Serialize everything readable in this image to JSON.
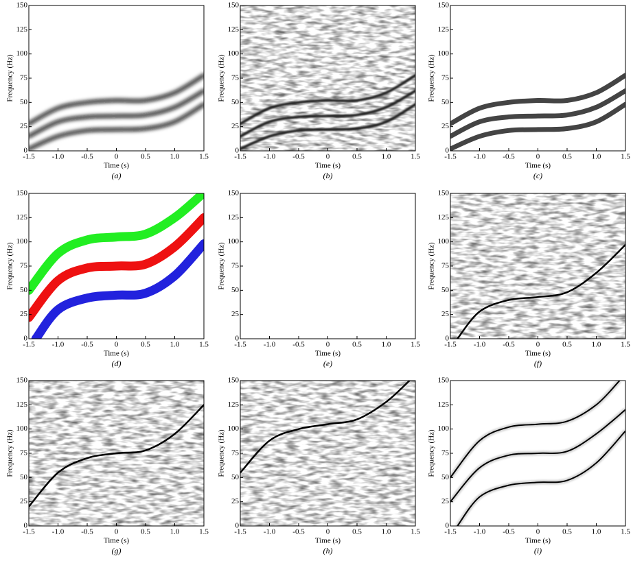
{
  "chart_data": [
    {
      "type": "line",
      "style": "blur",
      "xlabel": "Time (s)",
      "ylabel": "Frequency (Hz)",
      "caption": "(a)",
      "xlim": [
        -1.5,
        1.5
      ],
      "xticks": [
        -1.5,
        {
          "value": -1,
          "label": "-1.0"
        },
        -0.5,
        0,
        0.5,
        {
          "value": 1,
          "label": "1.0"
        },
        1.5
      ],
      "ylim": [
        0,
        150
      ],
      "yticks": [
        0,
        25,
        50,
        75,
        100,
        125,
        150
      ],
      "series": [
        {
          "color": "#111111",
          "x": [
            -1.5,
            -1,
            -0.5,
            0,
            0.5,
            1,
            1.5
          ],
          "values": [
            2,
            15,
            21,
            22,
            23,
            30,
            48
          ]
        },
        {
          "color": "#111111",
          "x": [
            -1.5,
            -1,
            -0.5,
            0,
            0.5,
            1,
            1.5
          ],
          "values": [
            15,
            30,
            35,
            36,
            37,
            45,
            62
          ]
        },
        {
          "color": "#111111",
          "x": [
            -1.5,
            -1,
            -0.5,
            0,
            0.5,
            1,
            1.5
          ],
          "values": [
            28,
            44,
            50,
            52,
            52,
            60,
            78
          ]
        }
      ]
    },
    {
      "type": "line",
      "style": "noise-blur",
      "xlabel": "Time (s)",
      "ylabel": "Frequency (Hz)",
      "caption": "(b)",
      "xlim": [
        -1.5,
        1.5
      ],
      "xticks": [
        -1.5,
        {
          "value": -1,
          "label": "-1.0"
        },
        -0.5,
        0,
        0.5,
        {
          "value": 1,
          "label": "1.0"
        },
        1.5
      ],
      "ylim": [
        0,
        150
      ],
      "yticks": [
        0,
        25,
        50,
        75,
        100,
        125,
        150
      ],
      "series": [
        {
          "color": "#222222",
          "x": [
            -1.5,
            -1,
            -0.5,
            0,
            0.5,
            1,
            1.5
          ],
          "values": [
            2,
            15,
            21,
            22,
            23,
            30,
            48
          ]
        },
        {
          "color": "#222222",
          "x": [
            -1.5,
            -1,
            -0.5,
            0,
            0.5,
            1,
            1.5
          ],
          "values": [
            15,
            30,
            35,
            36,
            37,
            45,
            62
          ]
        },
        {
          "color": "#222222",
          "x": [
            -1.5,
            -1,
            -0.5,
            0,
            0.5,
            1,
            1.5
          ],
          "values": [
            28,
            44,
            50,
            52,
            52,
            60,
            78
          ]
        }
      ]
    },
    {
      "type": "line",
      "style": "mask",
      "xlabel": "Time (s)",
      "ylabel": "Frequency (Hz)",
      "caption": "(c)",
      "xlim": [
        -1.5,
        1.5
      ],
      "xticks": [
        -1.5,
        {
          "value": -1,
          "label": "-1.0"
        },
        -0.5,
        0,
        0.5,
        {
          "value": 1,
          "label": "1.0"
        },
        1.5
      ],
      "ylim": [
        0,
        150
      ],
      "yticks": [
        0,
        25,
        50,
        75,
        100,
        125,
        150
      ],
      "series": [
        {
          "color": "#444444",
          "x": [
            -1.5,
            -1,
            -0.5,
            0,
            0.5,
            1,
            1.5
          ],
          "values": [
            2,
            15,
            21,
            22,
            23,
            30,
            48
          ]
        },
        {
          "color": "#444444",
          "x": [
            -1.5,
            -1,
            -0.5,
            0,
            0.5,
            1,
            1.5
          ],
          "values": [
            15,
            30,
            35,
            36,
            37,
            45,
            62
          ]
        },
        {
          "color": "#444444",
          "x": [
            -1.5,
            -1,
            -0.5,
            0,
            0.5,
            1,
            1.5
          ],
          "values": [
            28,
            44,
            50,
            52,
            52,
            60,
            78
          ]
        }
      ]
    },
    {
      "type": "line",
      "style": "band",
      "xlabel": "Time (s)",
      "ylabel": "Frequency (Hz)",
      "caption": "(d)",
      "xlim": [
        -1.5,
        1.5
      ],
      "xticks": [
        -1.5,
        {
          "value": -1,
          "label": "-1.0"
        },
        -0.5,
        0,
        0.5,
        {
          "value": 1,
          "label": "1.0"
        },
        1.5
      ],
      "ylim": [
        0,
        150
      ],
      "yticks": [
        0,
        25,
        50,
        75,
        100,
        125,
        150
      ],
      "series": [
        {
          "color": "#2222dd",
          "x": [
            -1.38,
            -1,
            -0.5,
            0,
            0.5,
            1,
            1.5
          ],
          "values": [
            0,
            30,
            42,
            45,
            47,
            65,
            98
          ]
        },
        {
          "color": "#ee1111",
          "x": [
            -1.5,
            -1,
            -0.5,
            0,
            0.5,
            1,
            1.5
          ],
          "values": [
            22,
            60,
            73,
            75,
            77,
            95,
            125
          ]
        },
        {
          "color": "#22ee22",
          "x": [
            -1.5,
            -1,
            -0.5,
            0,
            0.5,
            1,
            1.45
          ],
          "values": [
            50,
            88,
            102,
            105,
            108,
            125,
            148
          ]
        }
      ]
    },
    {
      "type": "line",
      "style": "empty",
      "xlabel": "Time (s)",
      "ylabel": "Frequency (Hz)",
      "caption": "(e)",
      "xlim": [
        -1.5,
        1.5
      ],
      "xticks": [
        -1.5,
        {
          "value": -1,
          "label": "-1.0"
        },
        -0.5,
        0,
        0.5,
        {
          "value": 1,
          "label": "1.0"
        },
        1.5
      ],
      "ylim": [
        0,
        150
      ],
      "yticks": [
        0,
        25,
        50,
        75,
        100,
        125,
        150
      ],
      "series": []
    },
    {
      "type": "line",
      "style": "noise-thin",
      "xlabel": "Time (s)",
      "ylabel": "Frequency (Hz)",
      "caption": "(f)",
      "xlim": [
        -1.5,
        1.5
      ],
      "xticks": [
        -1.5,
        {
          "value": -1,
          "label": "-1.0"
        },
        -0.5,
        0,
        0.5,
        {
          "value": 1,
          "label": "1.0"
        },
        1.5
      ],
      "ylim": [
        0,
        150
      ],
      "yticks": [
        0,
        25,
        50,
        75,
        100,
        125,
        150
      ],
      "series": [
        {
          "color": "#000000",
          "x": [
            -1.38,
            -1,
            -0.5,
            0,
            0.5,
            1,
            1.5
          ],
          "values": [
            0,
            28,
            40,
            43,
            48,
            68,
            97
          ]
        }
      ]
    },
    {
      "type": "line",
      "style": "noise-thin",
      "xlabel": "Time (s)",
      "ylabel": "Frequency (Hz)",
      "caption": "(g)",
      "xlim": [
        -1.5,
        1.5
      ],
      "xticks": [
        -1.5,
        {
          "value": -1,
          "label": "-1.0"
        },
        -0.5,
        0,
        0.5,
        {
          "value": 1,
          "label": "1.0"
        },
        1.5
      ],
      "ylim": [
        0,
        150
      ],
      "yticks": [
        0,
        25,
        50,
        75,
        100,
        125,
        150
      ],
      "series": [
        {
          "color": "#000000",
          "x": [
            -1.5,
            -1,
            -0.5,
            0,
            0.5,
            1,
            1.5
          ],
          "values": [
            20,
            55,
            70,
            75,
            78,
            95,
            125
          ]
        }
      ]
    },
    {
      "type": "line",
      "style": "noise-thin",
      "xlabel": "Time (s)",
      "ylabel": "Frequency (Hz)",
      "caption": "(h)",
      "xlim": [
        -1.5,
        1.5
      ],
      "xticks": [
        -1.5,
        {
          "value": -1,
          "label": "-1.0"
        },
        -0.5,
        0,
        0.5,
        {
          "value": 1,
          "label": "1.0"
        },
        1.5
      ],
      "ylim": [
        0,
        150
      ],
      "yticks": [
        0,
        25,
        50,
        75,
        100,
        125,
        150
      ],
      "series": [
        {
          "color": "#000000",
          "x": [
            -1.5,
            -1,
            -0.5,
            0,
            0.5,
            1,
            1.4
          ],
          "values": [
            55,
            88,
            100,
            105,
            110,
            128,
            150
          ]
        }
      ]
    },
    {
      "type": "line",
      "style": "thin",
      "xlabel": "Time (s)",
      "ylabel": "Frequency (Hz)",
      "caption": "(i)",
      "xlim": [
        -1.5,
        1.5
      ],
      "xticks": [
        -1.5,
        {
          "value": -1,
          "label": "-1.0"
        },
        -0.5,
        0,
        0.5,
        {
          "value": 1,
          "label": "1.0"
        },
        1.5
      ],
      "ylim": [
        0,
        150
      ],
      "yticks": [
        0,
        25,
        50,
        75,
        100,
        125,
        150
      ],
      "series": [
        {
          "color": "#000000",
          "x": [
            -1.38,
            -1,
            -0.5,
            0,
            0.5,
            1,
            1.5
          ],
          "values": [
            0,
            30,
            42,
            45,
            47,
            65,
            98
          ]
        },
        {
          "color": "#000000",
          "x": [
            -1.5,
            -1,
            -0.5,
            0,
            0.5,
            1,
            1.5
          ],
          "values": [
            25,
            60,
            73,
            75,
            77,
            95,
            120
          ]
        },
        {
          "color": "#000000",
          "x": [
            -1.5,
            -1,
            -0.5,
            0,
            0.5,
            1,
            1.4
          ],
          "values": [
            50,
            88,
            102,
            105,
            108,
            125,
            150
          ]
        }
      ]
    }
  ]
}
